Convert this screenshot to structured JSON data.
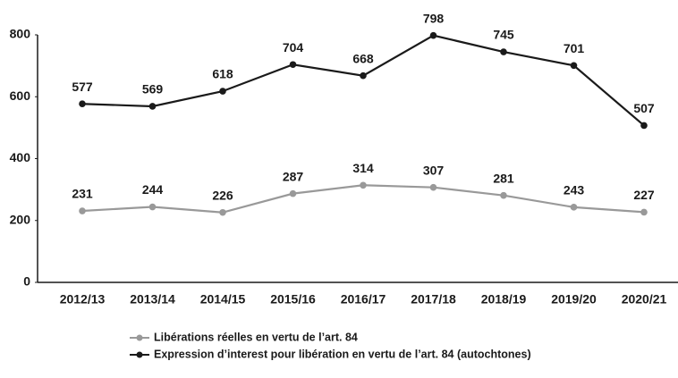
{
  "chart_data": {
    "type": "line",
    "categories": [
      "2012/13",
      "2013/14",
      "2014/15",
      "2015/16",
      "2016/17",
      "2017/18",
      "2018/19",
      "2019/20",
      "2020/21"
    ],
    "series": [
      {
        "name": "Libérations réelles en vertu de l’art. 84",
        "color": "#999999",
        "values": [
          231,
          244,
          226,
          287,
          314,
          307,
          281,
          243,
          227
        ]
      },
      {
        "name": "Expression d’interest pour libération en vertu de l’art. 84 (autochtones)",
        "color": "#1a1a1a",
        "values": [
          577,
          569,
          618,
          704,
          668,
          798,
          745,
          701,
          507
        ]
      }
    ],
    "ylim": [
      0,
      800
    ],
    "yticks": [
      0,
      200,
      400,
      600,
      800
    ],
    "grid": false,
    "legend": "bottom"
  }
}
